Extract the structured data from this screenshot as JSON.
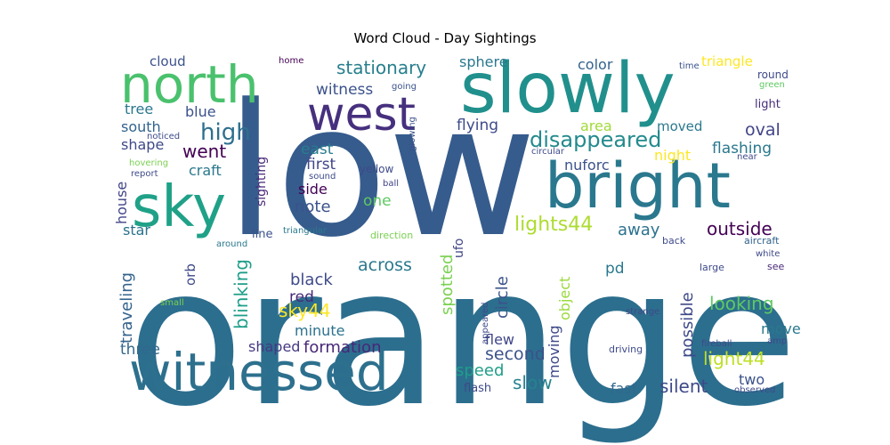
{
  "chart_data": {
    "type": "wordcloud",
    "title": "Word Cloud - Day Sightings",
    "words": [
      {
        "text": "orange",
        "color": "#2c6e8e"
      },
      {
        "text": "low",
        "color": "#365c8d"
      },
      {
        "text": "witnessed",
        "color": "#2d708e"
      },
      {
        "text": "slowly",
        "color": "#21908d"
      },
      {
        "text": "bright",
        "color": "#2a788e"
      },
      {
        "text": "north",
        "color": "#4ac16d"
      },
      {
        "text": "west",
        "color": "#46307e"
      },
      {
        "text": "sky",
        "color": "#1fa188"
      },
      {
        "text": "disappeared",
        "color": "#238a8d"
      },
      {
        "text": "high",
        "color": "#2e6f8e"
      },
      {
        "text": "stationary",
        "color": "#277f8e"
      },
      {
        "text": "witness",
        "color": "#3b528b"
      },
      {
        "text": "went",
        "color": "#440154"
      },
      {
        "text": "lights44",
        "color": "#addc30"
      },
      {
        "text": "looking",
        "color": "#5ec962"
      },
      {
        "text": "outside",
        "color": "#440154"
      },
      {
        "text": "light44",
        "color": "#bddf26"
      },
      {
        "text": "silent",
        "color": "#3e4989"
      },
      {
        "text": "black",
        "color": "#3e4a89"
      },
      {
        "text": "across",
        "color": "#2a788e"
      },
      {
        "text": "sky44",
        "color": "#fde725"
      },
      {
        "text": "formation",
        "color": "#482878"
      },
      {
        "text": "second",
        "color": "#3b528b"
      },
      {
        "text": "slow",
        "color": "#26828e"
      },
      {
        "text": "flashing",
        "color": "#2a788e"
      },
      {
        "text": "oval",
        "color": "#414487"
      },
      {
        "text": "flying",
        "color": "#3e4a89"
      },
      {
        "text": "east",
        "color": "#287c8e"
      },
      {
        "text": "first",
        "color": "#404688"
      },
      {
        "text": "note",
        "color": "#3b528b"
      },
      {
        "text": "side",
        "color": "#440154"
      },
      {
        "text": "one",
        "color": "#5ec962"
      },
      {
        "text": "away",
        "color": "#2c728e"
      },
      {
        "text": "red",
        "color": "#482878"
      },
      {
        "text": "minute",
        "color": "#2c728e"
      },
      {
        "text": "speed",
        "color": "#1f9e89"
      },
      {
        "text": "flew",
        "color": "#404688"
      },
      {
        "text": "fast",
        "color": "#31688e"
      },
      {
        "text": "move",
        "color": "#2a788e"
      },
      {
        "text": "two",
        "color": "#3b528b"
      },
      {
        "text": "three",
        "color": "#31688e"
      },
      {
        "text": "shaped",
        "color": "#443983"
      },
      {
        "text": "possible",
        "color": "#3e4a89"
      },
      {
        "text": "night",
        "color": "#fde725"
      },
      {
        "text": "nuforc",
        "color": "#3b528b"
      },
      {
        "text": "area",
        "color": "#a0da39"
      },
      {
        "text": "moved",
        "color": "#2a788e"
      },
      {
        "text": "color",
        "color": "#33638d"
      },
      {
        "text": "sphere",
        "color": "#2a788e"
      },
      {
        "text": "triangle",
        "color": "#fde725"
      },
      {
        "text": "cloud",
        "color": "#3b528b"
      },
      {
        "text": "tree",
        "color": "#2a788e"
      },
      {
        "text": "south",
        "color": "#33638d"
      },
      {
        "text": "shape",
        "color": "#3e4989"
      },
      {
        "text": "blue",
        "color": "#3b528b"
      },
      {
        "text": "craft",
        "color": "#2a788e"
      },
      {
        "text": "house",
        "color": "#414487"
      },
      {
        "text": "star",
        "color": "#2c728e"
      },
      {
        "text": "traveling",
        "color": "#33638d"
      },
      {
        "text": "orb",
        "color": "#3e4989"
      },
      {
        "text": "blinking",
        "color": "#1f9e89"
      },
      {
        "text": "spotted",
        "color": "#7ad151"
      },
      {
        "text": "circle",
        "color": "#3b528b"
      },
      {
        "text": "moving",
        "color": "#3e4989"
      },
      {
        "text": "object",
        "color": "#9bd93c"
      },
      {
        "text": "ufo",
        "color": "#414487"
      },
      {
        "text": "pd",
        "color": "#2a788e"
      },
      {
        "text": "sighting",
        "color": "#482878"
      },
      {
        "text": "light",
        "color": "#472d7b"
      },
      {
        "text": "round",
        "color": "#3e4989"
      },
      {
        "text": "green",
        "color": "#5ec962"
      },
      {
        "text": "time",
        "color": "#3b528b"
      },
      {
        "text": "home",
        "color": "#440154"
      },
      {
        "text": "going",
        "color": "#3b528b"
      },
      {
        "text": "glowing",
        "color": "#3b528b"
      },
      {
        "text": "yellow",
        "color": "#3e4a89"
      },
      {
        "text": "ball",
        "color": "#414487"
      },
      {
        "text": "sound",
        "color": "#3e4a89"
      },
      {
        "text": "circular",
        "color": "#3e4a89"
      },
      {
        "text": "near",
        "color": "#3e4a89"
      },
      {
        "text": "noticed",
        "color": "#3e4a89"
      },
      {
        "text": "hovering",
        "color": "#7ad151"
      },
      {
        "text": "report",
        "color": "#3e4a89"
      },
      {
        "text": "line",
        "color": "#3b528b"
      },
      {
        "text": "triangular",
        "color": "#2a788e"
      },
      {
        "text": "direction",
        "color": "#7ad151"
      },
      {
        "text": "around",
        "color": "#2a788e"
      },
      {
        "text": "back",
        "color": "#3e4a89"
      },
      {
        "text": "aircraft",
        "color": "#33638d"
      },
      {
        "text": "white",
        "color": "#3e4a89"
      },
      {
        "text": "large",
        "color": "#3e4a89"
      },
      {
        "text": "see",
        "color": "#482878"
      },
      {
        "text": "small",
        "color": "#7ad151"
      },
      {
        "text": "appeared",
        "color": "#3e4a89"
      },
      {
        "text": "strange",
        "color": "#3e4a89"
      },
      {
        "text": "driving",
        "color": "#3e4a89"
      },
      {
        "text": "fireball",
        "color": "#3e4a89"
      },
      {
        "text": "amp",
        "color": "#3e4a89"
      },
      {
        "text": "observed",
        "color": "#3e4a89"
      },
      {
        "text": "flash",
        "color": "#3e4a89"
      }
    ]
  }
}
